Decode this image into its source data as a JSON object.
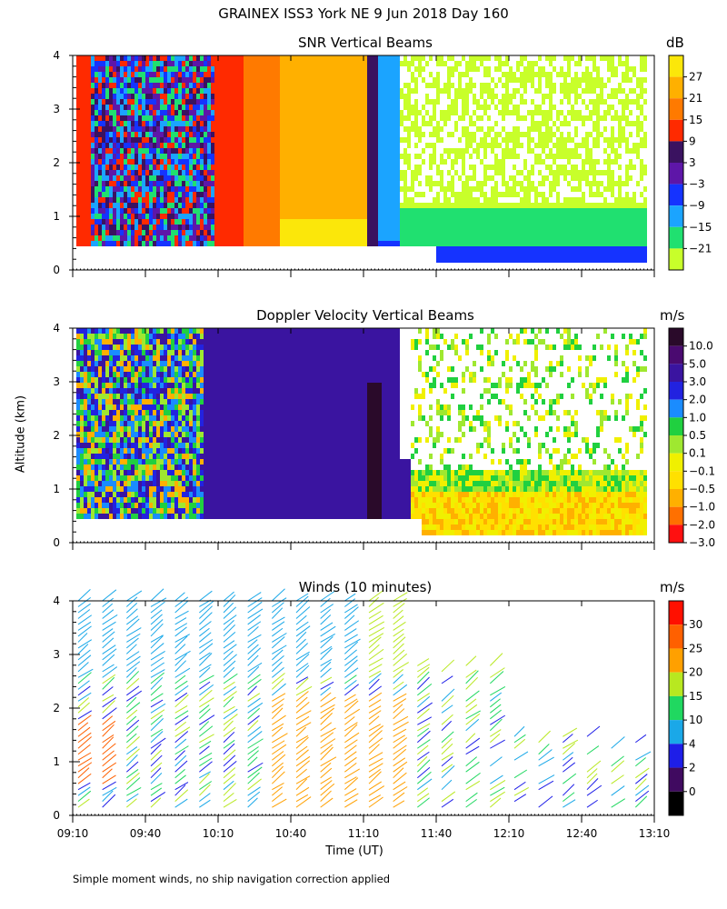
{
  "title": "GRAINEX ISS3 York NE   9 Jun 2018 Day 160",
  "y_axis_label": "Altitude (km)",
  "x_axis_label": "Time (UT)",
  "footnote": "Simple moment winds, no ship navigation correction applied",
  "chart_data": [
    {
      "type": "heatmap",
      "title": "SNR Vertical Beams",
      "colorbar_unit": "dB",
      "colorbar_labels": [
        "27",
        "21",
        "15",
        "9",
        "3",
        "−3",
        "−9",
        "−15",
        "−21"
      ],
      "colorbar_colors": [
        "#fbe70a",
        "#ffb000",
        "#ff7a00",
        "#ff2a00",
        "#3a1260",
        "#5e16a8",
        "#1533ff",
        "#1ba4ff",
        "#20e070",
        "#c8ff2a"
      ],
      "xlim_hours": [
        9.1667,
        13.1667
      ],
      "ylim_km": [
        0,
        4
      ],
      "y_ticks": [
        "0",
        "1",
        "2",
        "3",
        "4"
      ],
      "x_ticks": [
        "09:10",
        "09:40",
        "10:10",
        "10:40",
        "11:10",
        "11:40",
        "12:10",
        "12:40",
        "13:10"
      ]
    },
    {
      "type": "heatmap",
      "title": "Doppler Velocity Vertical Beams",
      "colorbar_unit": "m/s",
      "colorbar_labels": [
        "10.0",
        "5.0",
        "3.0",
        "2.0",
        "1.0",
        "0.5",
        "0.1",
        "−0.1",
        "−0.5",
        "−1.0",
        "−2.0",
        "−3.0"
      ],
      "colorbar_colors": [
        "#2a0a2a",
        "#4a0a70",
        "#3a14a0",
        "#2222e0",
        "#1a8cff",
        "#20d040",
        "#9fe830",
        "#f0f000",
        "#ffe000",
        "#ffb000",
        "#ff7000",
        "#ff1010"
      ],
      "xlim_hours": [
        9.1667,
        13.1667
      ],
      "ylim_km": [
        0,
        4
      ],
      "y_ticks": [
        "0",
        "1",
        "2",
        "3",
        "4"
      ],
      "x_ticks": [
        "09:10",
        "09:40",
        "10:10",
        "10:40",
        "11:10",
        "11:40",
        "12:10",
        "12:40",
        "13:10"
      ]
    },
    {
      "type": "scatter",
      "title": "Winds (10 minutes)",
      "colorbar_unit": "m/s",
      "colorbar_labels": [
        "30",
        "25",
        "20",
        "15",
        "10",
        "4",
        "2",
        "0"
      ],
      "colorbar_colors": [
        "#ff1000",
        "#ff6000",
        "#ffa000",
        "#b8e820",
        "#20d860",
        "#1aa8e8",
        "#1e1ee8",
        "#400a60",
        "#000000"
      ],
      "xlim_hours": [
        9.1667,
        13.1667
      ],
      "ylim_km": [
        0,
        4
      ],
      "y_ticks": [
        "0",
        "1",
        "2",
        "3",
        "4"
      ],
      "x_ticks": [
        "09:10",
        "09:40",
        "10:10",
        "10:40",
        "11:10",
        "11:40",
        "12:10",
        "12:40",
        "13:10"
      ],
      "wind_time_columns": [
        "09:10",
        "09:20",
        "09:30",
        "09:40",
        "09:50",
        "10:00",
        "10:10",
        "10:20",
        "10:30",
        "10:40",
        "10:50",
        "11:00",
        "11:10",
        "11:20",
        "11:30",
        "11:40",
        "11:50",
        "12:00",
        "12:10",
        "12:20",
        "12:30",
        "12:40",
        "12:50",
        "13:00"
      ]
    }
  ]
}
